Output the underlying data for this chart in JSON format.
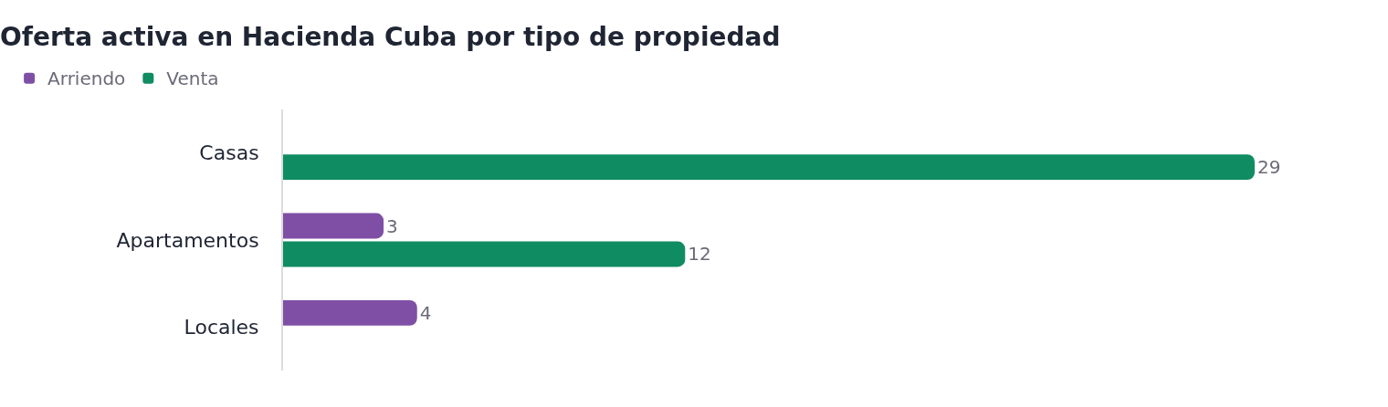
{
  "chart_data": {
    "type": "bar",
    "orientation": "horizontal",
    "title": "Oferta activa en Hacienda Cuba por tipo de propiedad",
    "categories": [
      "Casas",
      "Apartamentos",
      "Locales"
    ],
    "series": [
      {
        "name": "Arriendo",
        "color": "#7f4fa5",
        "values": [
          null,
          3,
          4
        ]
      },
      {
        "name": "Venta",
        "color": "#108c63",
        "values": [
          29,
          12,
          null
        ]
      }
    ],
    "data_labels": true,
    "legend": "top left"
  }
}
